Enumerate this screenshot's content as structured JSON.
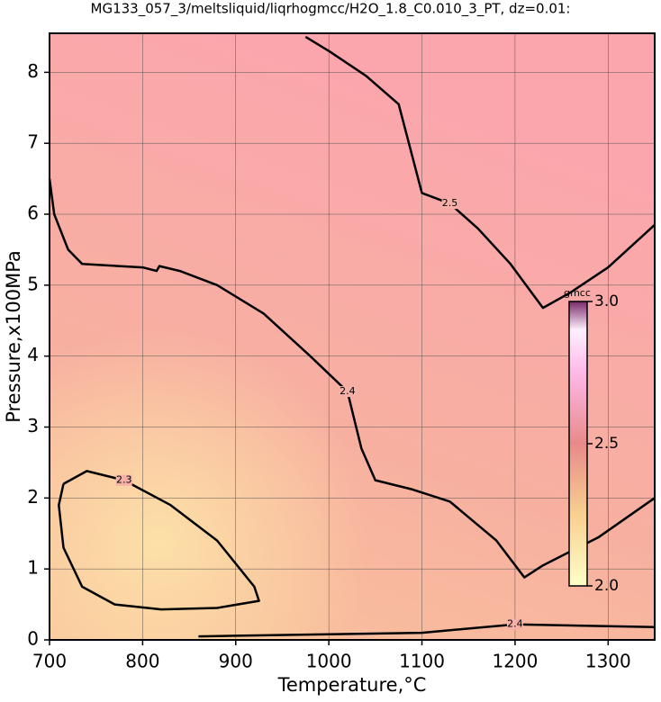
{
  "chart_data": {
    "type": "contour",
    "title": "MG133_057_3/meltsliquid/liqrhogmcc/H2O_1.8_C0.010_3_PT, dz=0.01:",
    "x_label": "Temperature,°C",
    "y_label": "Pressure,x100MPa",
    "xlim": [
      700,
      1350
    ],
    "ylim": [
      0,
      8.55
    ],
    "xticks": [
      700,
      800,
      900,
      1000,
      1100,
      1200,
      1300
    ],
    "yticks": [
      0,
      1,
      2,
      3,
      4,
      5,
      6,
      7,
      8
    ],
    "grid": true,
    "contours": [
      {
        "label": "2.5",
        "x": [
          975,
          1000,
          1040,
          1075,
          1100,
          1130,
          1160,
          1195,
          1230,
          1260,
          1300,
          1350
        ],
        "y": [
          8.5,
          8.3,
          7.95,
          7.55,
          6.3,
          6.15,
          5.8,
          5.3,
          4.68,
          4.9,
          5.25,
          5.85
        ]
      },
      {
        "label": "2.4",
        "x": [
          700,
          705,
          720,
          735,
          760,
          800,
          815,
          818,
          840,
          880,
          930,
          980,
          1020,
          1035,
          1050,
          1090,
          1130,
          1180,
          1210,
          1230,
          1290,
          1350
        ],
        "y": [
          6.5,
          6.0,
          5.5,
          5.3,
          5.28,
          5.25,
          5.2,
          5.27,
          5.2,
          5.0,
          4.6,
          4.0,
          3.5,
          2.7,
          2.25,
          2.12,
          1.95,
          1.4,
          0.88,
          1.05,
          1.45,
          2.0
        ]
      },
      {
        "label": "2.3",
        "x": [
          715,
          740,
          780,
          830,
          880,
          920,
          925,
          880,
          820,
          770,
          735,
          715,
          710,
          715
        ],
        "y": [
          2.2,
          2.38,
          2.25,
          1.9,
          1.4,
          0.75,
          0.55,
          0.45,
          0.43,
          0.5,
          0.75,
          1.3,
          1.9,
          2.2
        ]
      },
      {
        "label": "2.4",
        "x": [
          860,
          1000,
          1100,
          1200,
          1350
        ],
        "y": [
          0.05,
          0.08,
          0.1,
          0.22,
          0.18
        ]
      }
    ],
    "colorbar": {
      "label": "gmcc",
      "lim": [
        2,
        3
      ],
      "ticks": [
        {
          "value": 2,
          "label": "2.0"
        },
        2.5,
        {
          "value": 3,
          "label": "3.0"
        }
      ]
    }
  }
}
